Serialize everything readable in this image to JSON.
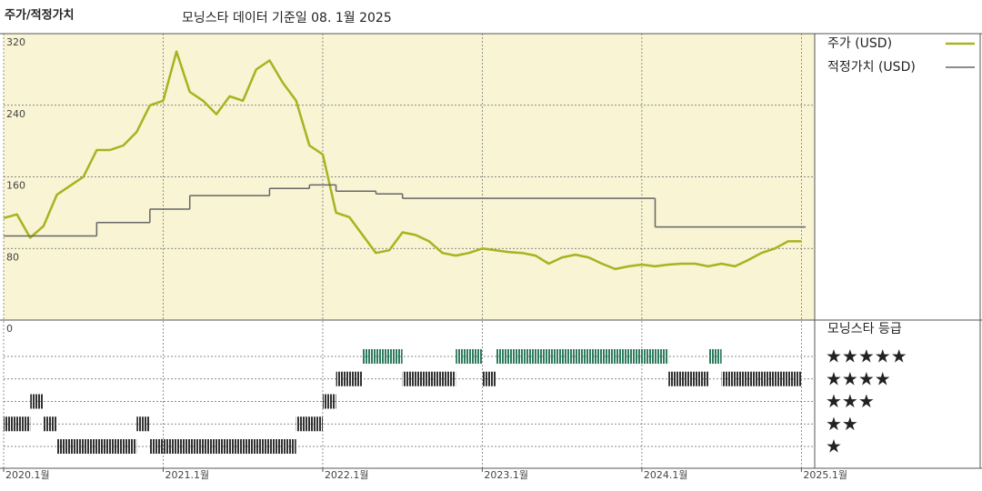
{
  "chart_data": {
    "type": "line",
    "title": "주가/적정가치",
    "subtitle": "모닝스타 데이터 기준일 08. 1월 2025",
    "xlim": [
      "2020-01",
      "2025-02"
    ],
    "xticks": [
      {
        "value": "2020-01",
        "label": "2020.1월"
      },
      {
        "value": "2021-01",
        "label": "2021.1월"
      },
      {
        "value": "2022-01",
        "label": "2022.1월"
      },
      {
        "value": "2023-01",
        "label": "2023.1월"
      },
      {
        "value": "2024-01",
        "label": "2024.1월"
      },
      {
        "value": "2025-01",
        "label": "2025.1월"
      }
    ],
    "ylim": [
      0,
      320
    ],
    "yticks": [
      0,
      80,
      160,
      240,
      320
    ],
    "grid": true,
    "series": [
      {
        "name": "주가 (USD)",
        "color": "#a9b21f",
        "x": [
          "2020-01",
          "2020-02",
          "2020-03",
          "2020-04",
          "2020-05",
          "2020-06",
          "2020-07",
          "2020-08",
          "2020-09",
          "2020-10",
          "2020-11",
          "2020-12",
          "2021-01",
          "2021-02",
          "2021-03",
          "2021-04",
          "2021-05",
          "2021-06",
          "2021-07",
          "2021-08",
          "2021-09",
          "2021-10",
          "2021-11",
          "2021-12",
          "2022-01",
          "2022-02",
          "2022-03",
          "2022-04",
          "2022-05",
          "2022-06",
          "2022-07",
          "2022-08",
          "2022-09",
          "2022-10",
          "2022-11",
          "2022-12",
          "2023-01",
          "2023-02",
          "2023-03",
          "2023-04",
          "2023-05",
          "2023-06",
          "2023-07",
          "2023-08",
          "2023-09",
          "2023-10",
          "2023-11",
          "2023-12",
          "2024-01",
          "2024-02",
          "2024-03",
          "2024-04",
          "2024-05",
          "2024-06",
          "2024-07",
          "2024-08",
          "2024-09",
          "2024-10",
          "2024-11",
          "2024-12",
          "2025-01"
        ],
        "values": [
          114,
          118,
          92,
          105,
          140,
          150,
          160,
          190,
          190,
          195,
          210,
          240,
          245,
          300,
          255,
          245,
          230,
          250,
          245,
          280,
          290,
          265,
          245,
          195,
          185,
          120,
          115,
          95,
          75,
          78,
          98,
          95,
          88,
          75,
          72,
          75,
          80,
          78,
          76,
          75,
          72,
          63,
          70,
          73,
          70,
          63,
          57,
          60,
          62,
          60,
          62,
          63,
          63,
          60,
          63,
          60,
          67,
          75,
          80,
          88,
          88
        ]
      },
      {
        "name": "적정가치 (USD)",
        "color": "#666666",
        "step": true,
        "x": [
          "2020-01",
          "2020-08",
          "2020-12",
          "2021-03",
          "2021-09",
          "2021-12",
          "2022-02",
          "2022-05",
          "2022-07",
          "2024-02"
        ],
        "values": [
          94,
          109,
          124,
          139,
          147,
          151,
          144,
          141,
          136,
          104
        ]
      }
    ],
    "rating": {
      "title": "모닝스타 등급",
      "color": "#333333",
      "top_color": "#2f7d5e",
      "ticks": [
        {
          "value": 5,
          "label": "★★★★★"
        },
        {
          "value": 4,
          "label": "★★★★"
        },
        {
          "value": 3,
          "label": "★★★"
        },
        {
          "value": 2,
          "label": "★★"
        },
        {
          "value": 1,
          "label": "★"
        }
      ],
      "periods": [
        {
          "start": "2020-01",
          "end": "2020-03",
          "stars": 2
        },
        {
          "start": "2020-03",
          "end": "2020-04",
          "stars": 3
        },
        {
          "start": "2020-04",
          "end": "2020-05",
          "stars": 2
        },
        {
          "start": "2020-05",
          "end": "2020-11",
          "stars": 1
        },
        {
          "start": "2020-11",
          "end": "2020-12",
          "stars": 2
        },
        {
          "start": "2020-12",
          "end": "2021-11",
          "stars": 1
        },
        {
          "start": "2021-11",
          "end": "2022-01",
          "stars": 2
        },
        {
          "start": "2022-01",
          "end": "2022-02",
          "stars": 3
        },
        {
          "start": "2022-02",
          "end": "2022-04",
          "stars": 4
        },
        {
          "start": "2022-04",
          "end": "2022-07",
          "stars": 5
        },
        {
          "start": "2022-07",
          "end": "2022-11",
          "stars": 4
        },
        {
          "start": "2022-11",
          "end": "2023-01",
          "stars": 5
        },
        {
          "start": "2023-01",
          "end": "2023-02",
          "stars": 4
        },
        {
          "start": "2023-02",
          "end": "2024-03",
          "stars": 5
        },
        {
          "start": "2024-03",
          "end": "2024-06",
          "stars": 4
        },
        {
          "start": "2024-06",
          "end": "2024-07",
          "stars": 5
        },
        {
          "start": "2024-07",
          "end": "2025-01",
          "stars": 4
        }
      ]
    }
  }
}
